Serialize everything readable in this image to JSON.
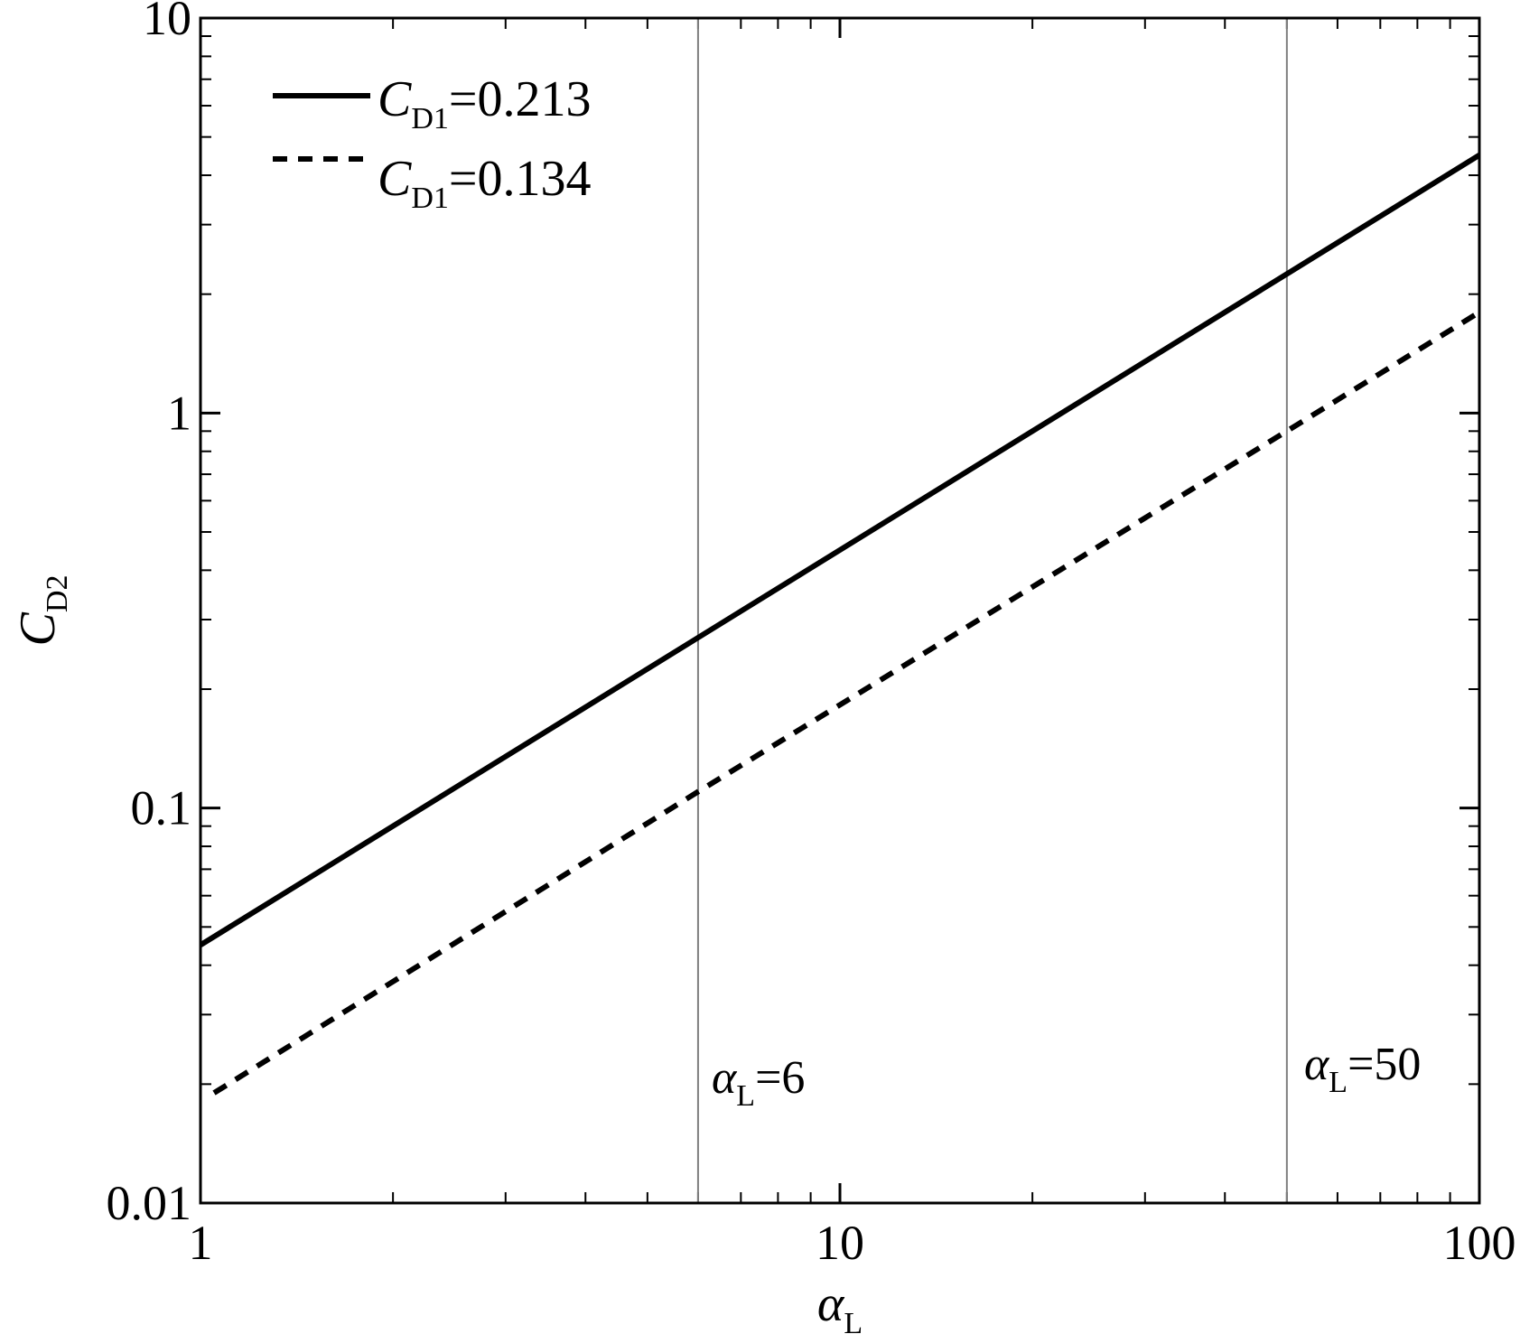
{
  "chart_data": {
    "type": "line",
    "x_scale": "log",
    "y_scale": "log",
    "xlim": [
      1,
      100
    ],
    "ylim": [
      0.01,
      10
    ],
    "grid": false,
    "legend_position": "top-left",
    "x_ticks": [
      1,
      10,
      100
    ],
    "x_tick_labels": [
      "1",
      "10",
      "100"
    ],
    "y_ticks": [
      0.01,
      0.1,
      1,
      10
    ],
    "y_tick_labels": [
      "0.01",
      "0.1",
      "1",
      "10"
    ],
    "xlabel": {
      "main": "α",
      "sub": "L"
    },
    "ylabel": {
      "main": "C",
      "sub": "D2"
    },
    "series": [
      {
        "main": "C",
        "sub": "D1",
        "value": "=0.213",
        "style": "solid",
        "color": "#000000",
        "x": [
          1,
          6,
          50,
          100
        ],
        "y": [
          0.045,
          0.27,
          2.25,
          4.5
        ]
      },
      {
        "main": "C",
        "sub": "D1",
        "value": "=0.134",
        "style": "dashed",
        "color": "#000000",
        "x": [
          1.05,
          6,
          50,
          100
        ],
        "y": [
          0.019,
          0.11,
          0.9,
          1.8
        ]
      }
    ],
    "vlines": [
      {
        "x": 6,
        "label_main": "α",
        "label_sub": "L",
        "label_value": "=6",
        "color": "#808080"
      },
      {
        "x": 50,
        "label_main": "α",
        "label_sub": "L",
        "label_value": "=50",
        "color": "#808080"
      }
    ]
  }
}
